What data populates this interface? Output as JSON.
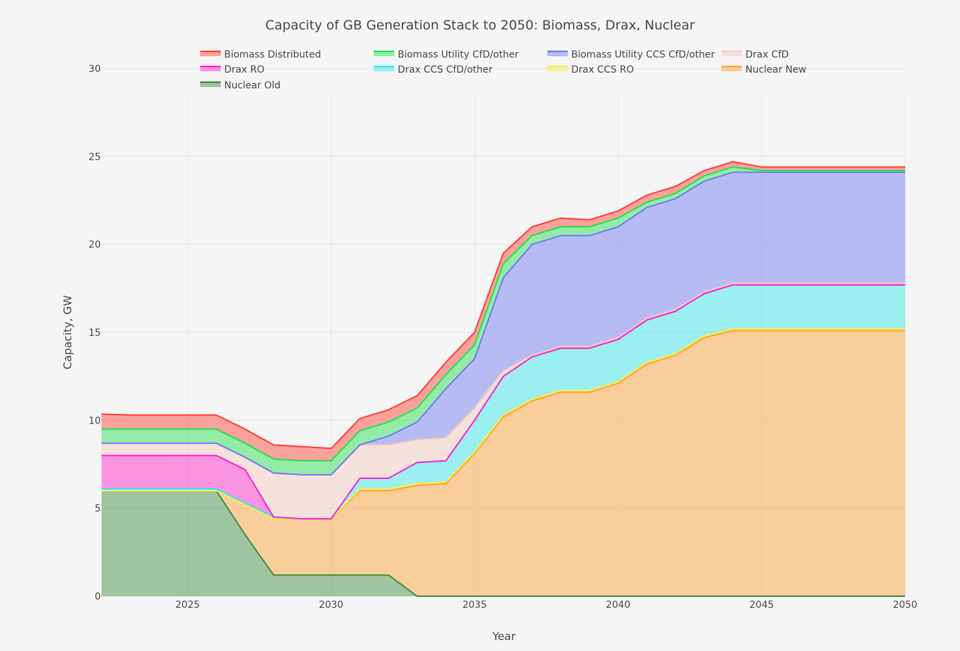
{
  "chart_data": {
    "type": "area",
    "title": "Capacity of GB Generation Stack to 2050: Biomass, Drax, Nuclear",
    "xlabel": "Year",
    "ylabel": "Capacity, GW",
    "xlim": [
      2022,
      2050
    ],
    "ylim": [
      0,
      30
    ],
    "xticks": [
      2025,
      2030,
      2035,
      2040,
      2045,
      2050
    ],
    "yticks": [
      0,
      5,
      10,
      15,
      20,
      25,
      30
    ],
    "grid": true,
    "legend_position": "top",
    "x": [
      2022,
      2023,
      2024,
      2025,
      2026,
      2027,
      2028,
      2029,
      2030,
      2031,
      2032,
      2033,
      2034,
      2035,
      2036,
      2037,
      2038,
      2039,
      2040,
      2041,
      2042,
      2043,
      2044,
      2045,
      2046,
      2047,
      2048,
      2049,
      2050
    ],
    "series": [
      {
        "name": "Nuclear Old",
        "color": "#3a8a3a",
        "values": [
          6.0,
          6.0,
          6.0,
          6.0,
          6.0,
          3.5,
          1.2,
          1.2,
          1.2,
          1.2,
          1.2,
          0,
          0,
          0,
          0,
          0,
          0,
          0,
          0,
          0,
          0,
          0,
          0,
          0,
          0,
          0,
          0,
          0,
          0
        ]
      },
      {
        "name": "Nuclear New",
        "color": "#ff9f2e",
        "values": [
          0,
          0,
          0,
          0,
          0,
          1.7,
          3.2,
          3.2,
          3.2,
          4.8,
          4.8,
          6.3,
          6.4,
          8.1,
          10.2,
          11.1,
          11.6,
          11.6,
          12.1,
          13.2,
          13.7,
          14.7,
          15.1,
          15.1,
          15.1,
          15.1,
          15.1,
          15.1,
          15.1
        ]
      },
      {
        "name": "Drax CCS RO",
        "color": "#f2f24a",
        "values": [
          0,
          0,
          0,
          0,
          0,
          0,
          0,
          0,
          0,
          0.1,
          0.1,
          0.1,
          0.1,
          0.1,
          0.1,
          0.1,
          0.1,
          0.1,
          0.1,
          0.1,
          0.1,
          0.1,
          0.1,
          0.1,
          0.1,
          0.1,
          0.1,
          0.1,
          0.1
        ]
      },
      {
        "name": "Drax CCS CfD/other",
        "color": "#2ee8ee",
        "values": [
          0.1,
          0.1,
          0.1,
          0.1,
          0.1,
          0.1,
          0.1,
          0,
          0,
          0.6,
          0.6,
          1.2,
          1.2,
          1.8,
          2.2,
          2.4,
          2.4,
          2.4,
          2.4,
          2.4,
          2.4,
          2.4,
          2.5,
          2.5,
          2.5,
          2.5,
          2.5,
          2.5,
          2.5
        ]
      },
      {
        "name": "Drax  RO",
        "color": "#ff1fc8",
        "values": [
          1.9,
          1.9,
          1.9,
          1.9,
          1.9,
          1.9,
          0,
          0,
          0,
          0,
          0,
          0,
          0,
          0,
          0,
          0,
          0,
          0,
          0,
          0,
          0,
          0,
          0,
          0,
          0,
          0,
          0,
          0,
          0
        ]
      },
      {
        "name": "Drax  CfD",
        "color": "#f6c9bf",
        "values": [
          0.7,
          0.7,
          0.7,
          0.7,
          0.7,
          0.7,
          2.5,
          2.5,
          2.5,
          1.9,
          1.9,
          1.3,
          1.3,
          0.7,
          0.3,
          0.1,
          0.1,
          0.1,
          0.1,
          0.1,
          0.1,
          0.1,
          0.1,
          0.1,
          0.1,
          0.1,
          0.1,
          0.1,
          0.1
        ]
      },
      {
        "name": "Biomass Utility CCS CfD/other",
        "color": "#6b78f2",
        "values": [
          0,
          0,
          0,
          0,
          0,
          0,
          0,
          0,
          0,
          0,
          0.5,
          1.0,
          2.8,
          2.8,
          5.3,
          6.3,
          6.3,
          6.3,
          6.3,
          6.3,
          6.3,
          6.3,
          6.3,
          6.3,
          6.3,
          6.3,
          6.3,
          6.3,
          6.3
        ]
      },
      {
        "name": "Biomass Utility  CfD/other",
        "color": "#1fe04a",
        "values": [
          0.8,
          0.8,
          0.8,
          0.8,
          0.8,
          0.8,
          0.8,
          0.8,
          0.8,
          0.8,
          0.8,
          0.8,
          0.8,
          0.8,
          0.8,
          0.5,
          0.5,
          0.5,
          0.5,
          0.3,
          0.3,
          0.3,
          0.3,
          0.1,
          0.1,
          0.1,
          0.1,
          0.1,
          0.1
        ]
      },
      {
        "name": "Biomass Distributed",
        "color": "#ff3b30",
        "values": [
          0.85,
          0.8,
          0.8,
          0.8,
          0.8,
          0.8,
          0.8,
          0.8,
          0.7,
          0.7,
          0.7,
          0.7,
          0.7,
          0.7,
          0.6,
          0.5,
          0.5,
          0.4,
          0.4,
          0.4,
          0.4,
          0.3,
          0.3,
          0.2,
          0.2,
          0.2,
          0.2,
          0.2,
          0.2
        ]
      }
    ],
    "legend_order": [
      "Biomass Distributed",
      "Biomass Utility  CfD/other",
      "Biomass Utility CCS CfD/other",
      "Drax  CfD",
      "Drax  RO",
      "Drax CCS CfD/other",
      "Drax CCS RO",
      "Nuclear New",
      "Nuclear Old"
    ]
  }
}
